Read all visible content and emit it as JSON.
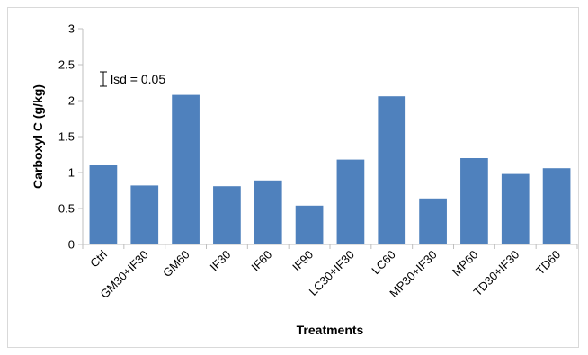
{
  "chart_data": {
    "type": "bar",
    "categories": [
      "Ctrl",
      "GM30+IF30",
      "GM60",
      "IF30",
      "IF60",
      "IF90",
      "LC30+IF30",
      "LC60",
      "MP30+IF30",
      "MP60",
      "TD30+IF30",
      "TD60"
    ],
    "values": [
      1.1,
      0.82,
      2.08,
      0.81,
      0.89,
      0.54,
      1.18,
      2.06,
      0.64,
      1.2,
      0.98,
      1.06
    ],
    "xlabel": "Treatments",
    "ylabel": "Carboxyl C (g/kg)",
    "ylim": [
      0,
      3
    ],
    "yticks": [
      "0",
      "0.5",
      "1",
      "1.5",
      "2",
      "2.5",
      "3"
    ],
    "annotation": "lsd = 0.05",
    "lsd_value": 0.05,
    "bar_color": "#4f81bd",
    "grid": false
  }
}
